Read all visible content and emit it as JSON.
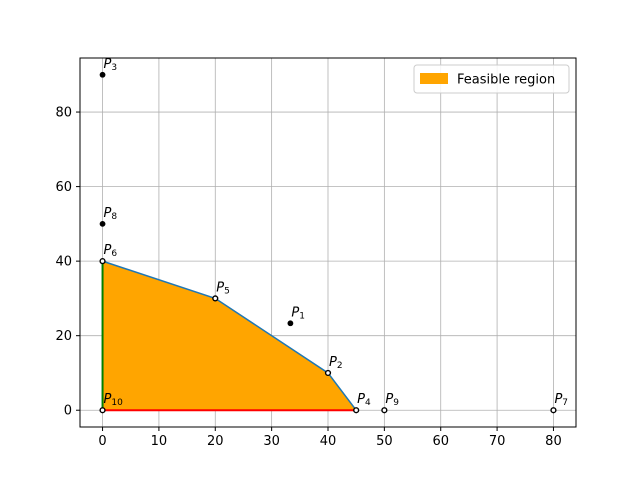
{
  "chart_data": {
    "type": "area",
    "title": "",
    "xlabel": "",
    "ylabel": "",
    "xlim": [
      -4,
      84
    ],
    "ylim": [
      -4.5,
      94.5
    ],
    "x_ticks": [
      0,
      10,
      20,
      30,
      40,
      50,
      60,
      70,
      80
    ],
    "y_ticks": [
      0,
      20,
      40,
      60,
      80
    ],
    "grid": true,
    "legend": {
      "location": "top-right",
      "entries": [
        {
          "label": "Feasible region",
          "color": "#ffa500"
        }
      ]
    },
    "feasible_region": {
      "label": "Feasible region",
      "fill_color": "#ffa500",
      "edge_color": "#1f77b4",
      "vertices": [
        [
          0,
          0
        ],
        [
          0,
          40
        ],
        [
          20,
          30
        ],
        [
          40,
          10
        ],
        [
          45,
          0
        ]
      ]
    },
    "constraint_lines": [
      {
        "name": "x = 0",
        "color": "#008000",
        "points": [
          [
            0,
            0
          ],
          [
            0,
            40
          ]
        ]
      },
      {
        "name": "y = 0",
        "color": "#ff0000",
        "points": [
          [
            0,
            0
          ],
          [
            45,
            0
          ]
        ]
      }
    ],
    "points": [
      {
        "name": "P",
        "sub": "1",
        "x": 33.33,
        "y": 23.33
      },
      {
        "name": "P",
        "sub": "2",
        "x": 40,
        "y": 10
      },
      {
        "name": "P",
        "sub": "3",
        "x": 0,
        "y": 90
      },
      {
        "name": "P",
        "sub": "4",
        "x": 45,
        "y": 0
      },
      {
        "name": "P",
        "sub": "5",
        "x": 20,
        "y": 30
      },
      {
        "name": "P",
        "sub": "6",
        "x": 0,
        "y": 40
      },
      {
        "name": "P",
        "sub": "7",
        "x": 80,
        "y": 0
      },
      {
        "name": "P",
        "sub": "8",
        "x": 0,
        "y": 50
      },
      {
        "name": "P",
        "sub": "9",
        "x": 50,
        "y": 0
      },
      {
        "name": "P",
        "sub": "10",
        "x": 0,
        "y": 0
      }
    ],
    "colors": {
      "grid": "#b0b0b0",
      "axes": "#000000",
      "point_filled": "#000000",
      "point_hollow_face": "#ffffff"
    }
  }
}
